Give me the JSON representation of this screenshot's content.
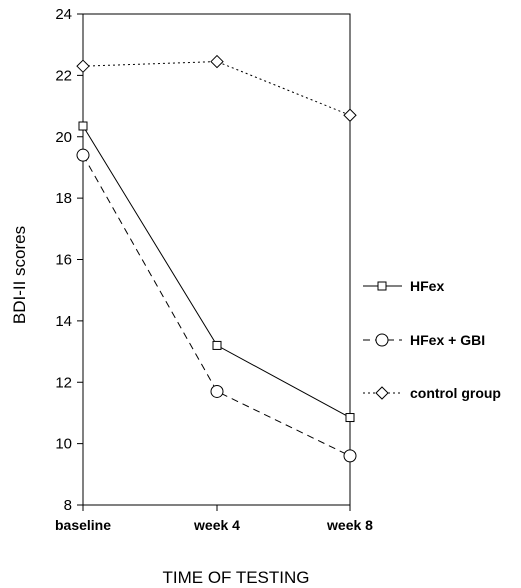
{
  "chart_data": {
    "type": "line",
    "title": "",
    "xlabel": "TIME OF TESTING",
    "ylabel": "BDI-II scores",
    "categories": [
      "baseline",
      "week 4",
      "week 8"
    ],
    "ylim": [
      8,
      24
    ],
    "yticks": [
      8,
      10,
      12,
      14,
      16,
      18,
      20,
      22,
      24
    ],
    "grid": false,
    "legend_position": "right",
    "series": [
      {
        "name": "HFex",
        "values": [
          20.35,
          13.2,
          10.85
        ],
        "marker": "square",
        "line_style": "solid",
        "color": "#000000"
      },
      {
        "name": "HFex + GBI",
        "values": [
          19.4,
          11.7,
          9.6
        ],
        "marker": "circle",
        "line_style": "dashed",
        "color": "#000000"
      },
      {
        "name": "control group",
        "values": [
          22.3,
          22.45,
          20.7
        ],
        "marker": "diamond",
        "line_style": "dotted",
        "color": "#000000"
      }
    ]
  }
}
